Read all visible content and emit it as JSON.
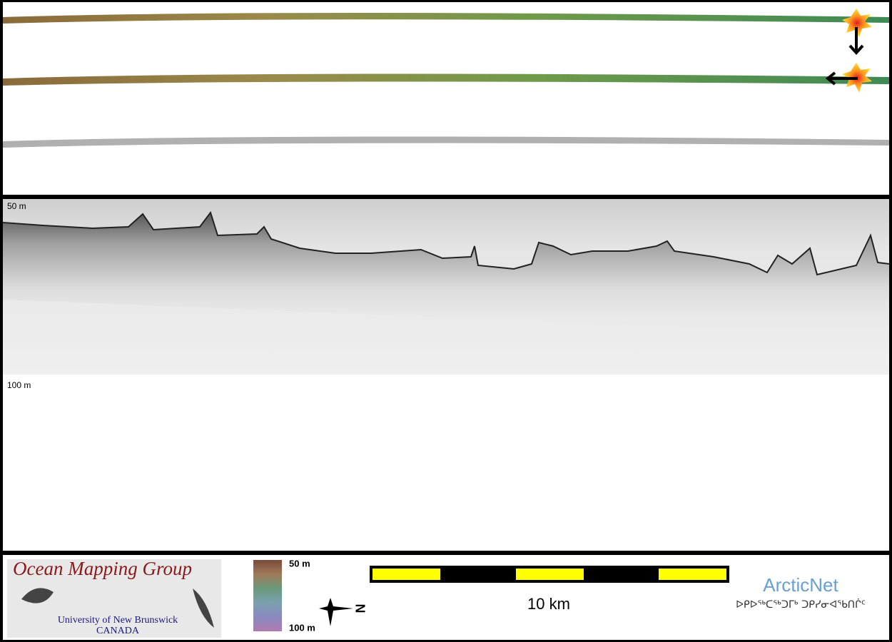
{
  "sonar": {
    "top_depth_label": "50 m",
    "bottom_depth_label": "100 m"
  },
  "legend": {
    "color_scale": {
      "top_label": "50 m",
      "bottom_label": "100 m"
    },
    "north_label": "N",
    "scale_bar_label": "10 km"
  },
  "logos": {
    "omg": {
      "title": "Ocean Mapping Group",
      "university": "University of New Brunswick",
      "country": "CANADA"
    },
    "arcticnet": {
      "name": "ArcticNet",
      "inuktitut": "ᐅᑭᐅᖅᑕᖅᑐᒥᒃ ᑐᑭᓯᓂᐊᖃᑎᒌᑦ"
    }
  }
}
